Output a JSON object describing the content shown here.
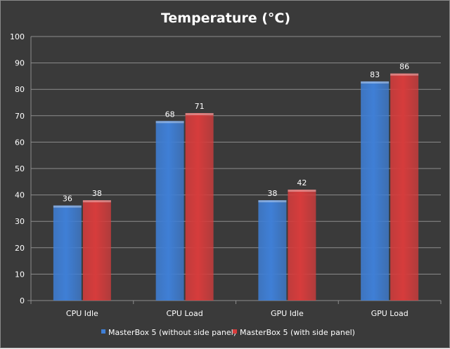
{
  "chart_data": {
    "type": "bar",
    "title": "Temperature (°C)",
    "categories": [
      "CPU Idle",
      "CPU Load",
      "GPU Idle",
      "GPU Load"
    ],
    "series": [
      {
        "name": "MasterBox 5 (without side panel)",
        "values": [
          36,
          68,
          38,
          83
        ],
        "color": "#3f7fd6"
      },
      {
        "name": "MasterBox 5 (with side panel)",
        "values": [
          38,
          71,
          42,
          86
        ],
        "color": "#d63c3c"
      }
    ],
    "ylim": [
      0,
      100
    ],
    "yticks": [
      0,
      10,
      20,
      30,
      40,
      50,
      60,
      70,
      80,
      90,
      100
    ],
    "grid": true,
    "legend_position": "bottom"
  },
  "colors": {
    "background": "#3a3a3a",
    "gridline": "#8c8c8c",
    "text": "#ffffff"
  }
}
